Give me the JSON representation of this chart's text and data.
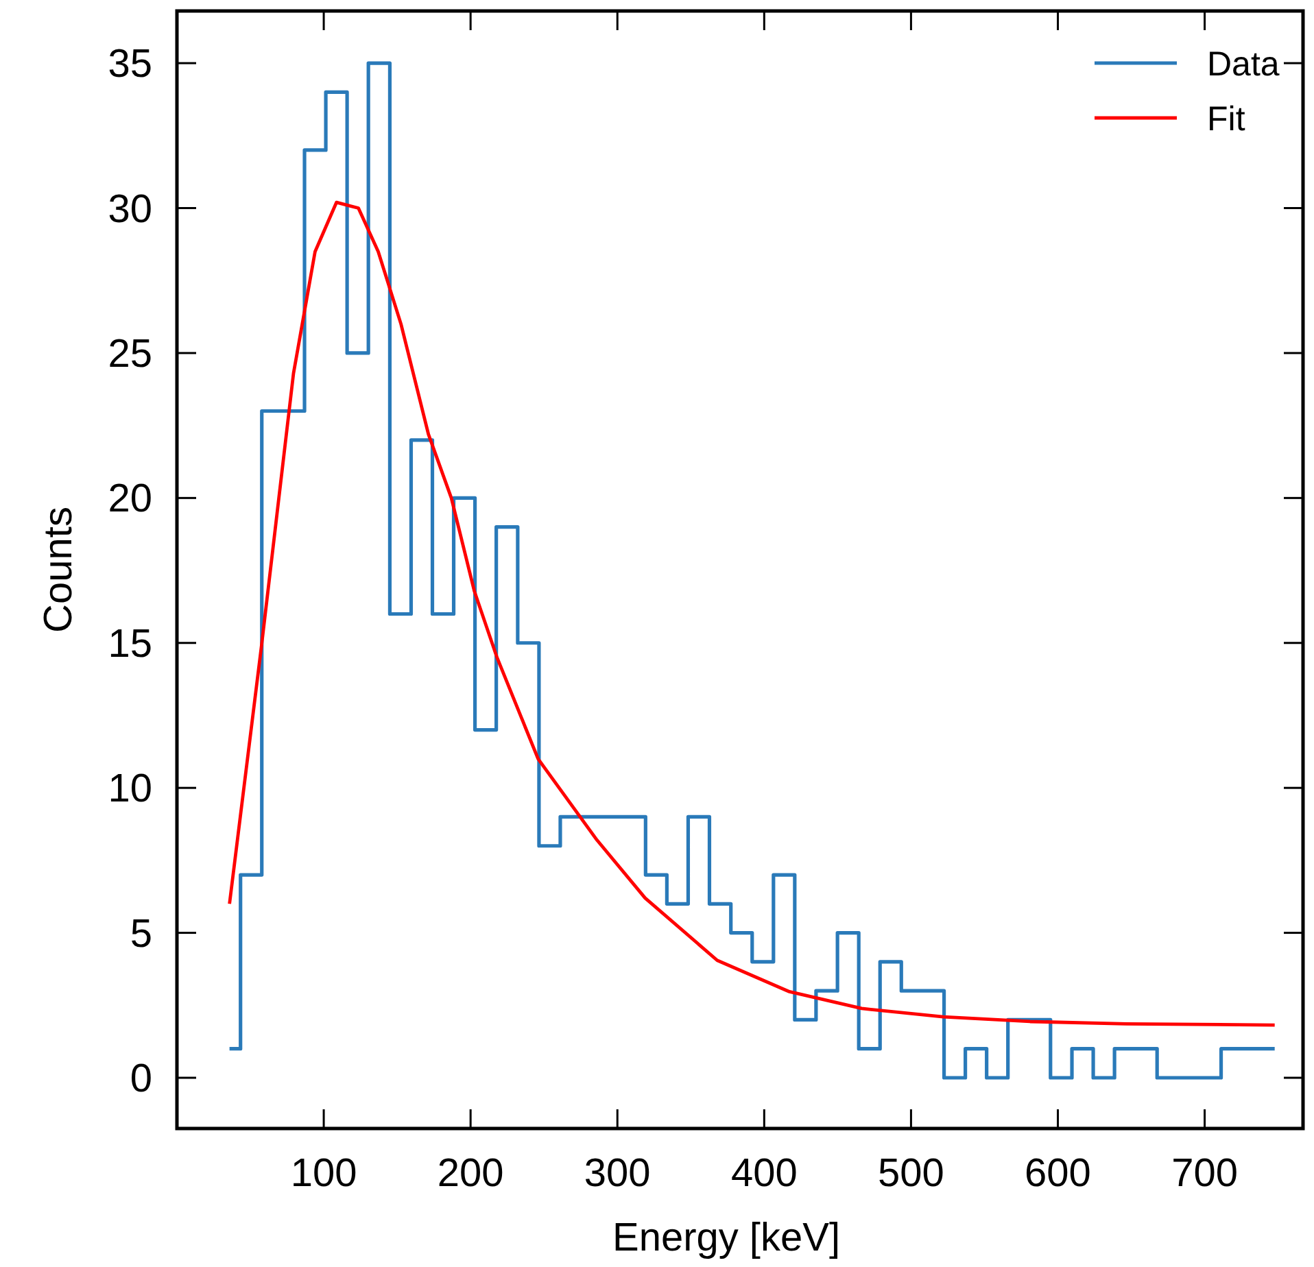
{
  "chart_data": {
    "type": "step",
    "xlabel": "Energy [keV]",
    "ylabel": "Counts",
    "xlim": [
      0,
      767
    ],
    "ylim": [
      -1.75,
      36.8
    ],
    "xticks": [
      100,
      200,
      300,
      400,
      500,
      600,
      700
    ],
    "yticks": [
      0,
      5,
      10,
      15,
      20,
      25,
      30,
      35
    ],
    "grid": false,
    "legend": "top right",
    "series": [
      {
        "name": "Data",
        "color": "#2a7ab9",
        "x": [
          35.8,
          43.3,
          57.8,
          72.3,
          86.9,
          101.4,
          115.9,
          130.4,
          145.0,
          159.5,
          174.0,
          188.5,
          203.0,
          217.5,
          232.1,
          246.6,
          261.1,
          275.6,
          290.1,
          304.7,
          319.2,
          333.7,
          348.2,
          362.7,
          377.3,
          391.8,
          406.3,
          420.8,
          435.3,
          449.9,
          464.4,
          478.9,
          493.4,
          507.9,
          522.5,
          537.0,
          551.5,
          566.0,
          580.5,
          595.0,
          609.6,
          624.1,
          638.6,
          653.1,
          667.6,
          682.2,
          696.7,
          711.2,
          725.7,
          740.2,
          747.7
        ],
        "values": [
          1,
          7,
          23,
          23,
          32,
          34,
          25,
          35,
          16,
          22,
          16,
          20,
          12,
          19,
          15,
          8,
          9,
          9,
          9,
          9,
          7,
          6,
          9,
          6,
          5,
          4,
          7,
          2,
          3,
          5,
          1,
          4,
          3,
          3,
          0,
          1,
          0,
          2,
          2,
          0,
          1,
          0,
          1,
          1,
          0,
          0,
          0,
          1,
          1,
          1,
          1
        ]
      },
      {
        "name": "Fit",
        "type": "line",
        "color": "#ff0000",
        "x": [
          35.8,
          57.6,
          79.4,
          94.1,
          108.7,
          123.6,
          137.1,
          152.6,
          171.3,
          186.9,
          202.5,
          218,
          246,
          286.1,
          318.9,
          368,
          417.2,
          466.4,
          522,
          581.1,
          646.6,
          747.7
        ],
        "values": [
          6.0,
          14.9,
          24.3,
          28.5,
          30.2,
          30.0,
          28.5,
          26.0,
          22.2,
          20.0,
          16.8,
          14.5,
          11.0,
          8.2,
          6.2,
          4.05,
          2.97,
          2.39,
          2.1,
          1.94,
          1.86,
          1.82
        ]
      }
    ]
  }
}
